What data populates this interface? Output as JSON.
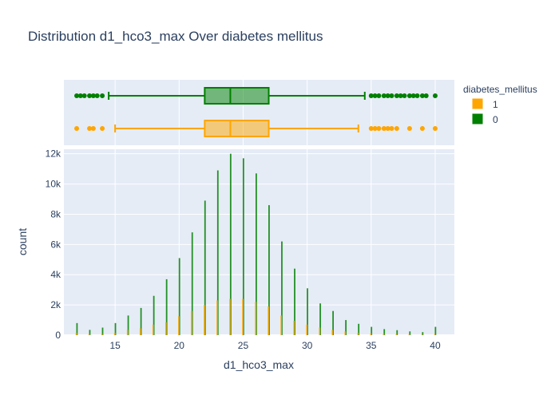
{
  "chart_data": {
    "type": "bar",
    "title": "Distribution d1_hco3_max Over diabetes mellitus",
    "xlabel": "d1_hco3_max",
    "ylabel": "count",
    "xlim": [
      11,
      41.5
    ],
    "ylim": [
      0,
      12300
    ],
    "x_ticks": [
      15,
      20,
      25,
      30,
      35,
      40
    ],
    "y_ticks": [
      0,
      2000,
      4000,
      6000,
      8000,
      10000,
      12000
    ],
    "y_tick_labels": [
      "0",
      "2k",
      "4k",
      "6k",
      "8k",
      "10k",
      "12k"
    ],
    "legend": {
      "title": "diabetes_mellitus",
      "placement": "top-right"
    },
    "grid": true,
    "series": [
      {
        "name": "1",
        "color": "#FFA500",
        "x": [
          12,
          13,
          14,
          15,
          16,
          17,
          18,
          19,
          20,
          21,
          22,
          23,
          24,
          25,
          26,
          27,
          28,
          29,
          30,
          31,
          32,
          33,
          34,
          35,
          36,
          37,
          38,
          39,
          40
        ],
        "values": [
          150,
          60,
          80,
          150,
          350,
          450,
          700,
          850,
          1250,
          1600,
          2000,
          2300,
          2400,
          2400,
          2200,
          1900,
          1300,
          950,
          700,
          500,
          350,
          250,
          160,
          120,
          90,
          60,
          50,
          40,
          60
        ],
        "box": {
          "min": 15,
          "q1": 22,
          "median": 24,
          "q3": 27,
          "max": 34,
          "outliers": [
            12,
            13,
            13.3,
            14,
            35,
            35.3,
            35.6,
            36,
            36.3,
            36.6,
            37,
            38,
            39,
            40
          ]
        }
      },
      {
        "name": "0",
        "color": "#008000",
        "x": [
          12,
          13,
          14,
          15,
          16,
          17,
          18,
          19,
          20,
          21,
          22,
          23,
          24,
          25,
          26,
          27,
          28,
          29,
          30,
          31,
          32,
          33,
          34,
          35,
          36,
          37,
          38,
          39,
          40
        ],
        "values": [
          800,
          350,
          500,
          800,
          1300,
          1800,
          2600,
          3700,
          5100,
          6800,
          8900,
          10900,
          12000,
          11700,
          10700,
          8600,
          6200,
          4400,
          3100,
          2100,
          1600,
          1000,
          750,
          550,
          400,
          330,
          250,
          200,
          550
        ],
        "box": {
          "min": 14.5,
          "q1": 22,
          "median": 24,
          "q3": 27,
          "max": 34.5,
          "outliers": [
            12,
            12.3,
            12.6,
            13,
            13.3,
            13.6,
            14,
            35,
            35.3,
            35.6,
            36,
            36.3,
            36.6,
            37,
            37.3,
            37.6,
            38,
            38.3,
            38.6,
            39,
            39.3,
            40
          ]
        }
      }
    ]
  }
}
